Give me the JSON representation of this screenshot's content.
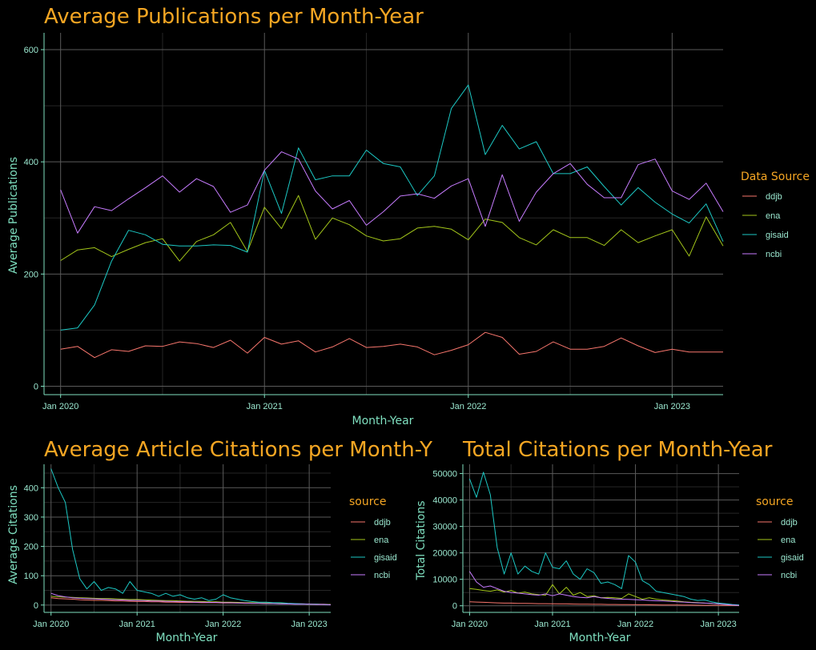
{
  "colors": {
    "background": "#000000",
    "title": "#f5a623",
    "axis_text": "#7fe0c0",
    "grid_major": "#5a5a5a",
    "grid_minor": "#262626",
    "ddjb": "#f8766d",
    "ena": "#a3c61a",
    "gisaid": "#1cc8c4",
    "ncbi": "#c77cff"
  },
  "chart_data": [
    {
      "type": "line",
      "title": "Average Publications per Month-Year",
      "xlabel": "Month-Year",
      "ylabel": "Average Publications",
      "legend_title": "Data Source",
      "legend_placement": "right",
      "grid": true,
      "x_ticks": [
        "Jan 2020",
        "Jan 2021",
        "Jan 2022",
        "Jan 2023"
      ],
      "y_ticks": [
        0,
        200,
        400,
        600
      ],
      "ylim": [
        -15,
        630
      ],
      "x": [
        "2020-01",
        "2020-02",
        "2020-03",
        "2020-04",
        "2020-05",
        "2020-06",
        "2020-07",
        "2020-08",
        "2020-09",
        "2020-10",
        "2020-11",
        "2020-12",
        "2021-01",
        "2021-02",
        "2021-03",
        "2021-04",
        "2021-05",
        "2021-06",
        "2021-07",
        "2021-08",
        "2021-09",
        "2021-10",
        "2021-11",
        "2021-12",
        "2022-01",
        "2022-02",
        "2022-03",
        "2022-04",
        "2022-05",
        "2022-06",
        "2022-07",
        "2022-08",
        "2022-09",
        "2022-10",
        "2022-11",
        "2022-12",
        "2023-01",
        "2023-02",
        "2023-03",
        "2023-04"
      ],
      "series": [
        {
          "name": "ddjb",
          "values": [
            66,
            71,
            51,
            65,
            62,
            72,
            71,
            79,
            76,
            69,
            82,
            59,
            87,
            75,
            81,
            61,
            70,
            85,
            69,
            71,
            75,
            70,
            56,
            64,
            74,
            96,
            87,
            57,
            62,
            79,
            66,
            66,
            71,
            86,
            72,
            60,
            66,
            61,
            61,
            61
          ]
        },
        {
          "name": "ena",
          "values": [
            224,
            243,
            247,
            231,
            244,
            256,
            263,
            223,
            258,
            270,
            292,
            240,
            319,
            281,
            340,
            262,
            300,
            288,
            268,
            259,
            263,
            282,
            285,
            280,
            261,
            298,
            292,
            265,
            252,
            279,
            265,
            265,
            251,
            279,
            256,
            268,
            279,
            232,
            302,
            250
          ]
        },
        {
          "name": "gisaid",
          "values": [
            100,
            104,
            145,
            223,
            278,
            270,
            253,
            250,
            250,
            252,
            251,
            239,
            385,
            308,
            425,
            368,
            375,
            375,
            421,
            397,
            391,
            340,
            375,
            495,
            537,
            413,
            465,
            423,
            436,
            379,
            379,
            391,
            356,
            323,
            354,
            328,
            307,
            291,
            325,
            258
          ]
        },
        {
          "name": "ncbi",
          "values": [
            350,
            273,
            320,
            313,
            334,
            354,
            375,
            346,
            370,
            356,
            310,
            323,
            385,
            418,
            405,
            348,
            316,
            331,
            287,
            311,
            339,
            343,
            335,
            357,
            370,
            285,
            377,
            294,
            346,
            379,
            397,
            360,
            336,
            336,
            395,
            405,
            348,
            333,
            362,
            311
          ]
        }
      ]
    },
    {
      "type": "line",
      "title": "Average Article Citations per Month-Y",
      "xlabel": "Month-Year",
      "ylabel": "Average Citations",
      "legend_title": "source",
      "legend_placement": "right",
      "grid": true,
      "x_ticks": [
        "Jan 2020",
        "Jan 2021",
        "Jan 2022",
        "Jan 2023"
      ],
      "y_ticks": [
        0,
        100,
        200,
        300,
        400
      ],
      "ylim": [
        -25,
        480
      ],
      "x": [
        "2020-01",
        "2020-02",
        "2020-03",
        "2020-04",
        "2020-05",
        "2020-06",
        "2020-07",
        "2020-08",
        "2020-09",
        "2020-10",
        "2020-11",
        "2020-12",
        "2021-01",
        "2021-02",
        "2021-03",
        "2021-04",
        "2021-05",
        "2021-06",
        "2021-07",
        "2021-08",
        "2021-09",
        "2021-10",
        "2021-11",
        "2021-12",
        "2022-01",
        "2022-02",
        "2022-03",
        "2022-04",
        "2022-05",
        "2022-06",
        "2022-07",
        "2022-08",
        "2022-09",
        "2022-10",
        "2022-11",
        "2022-12",
        "2023-01",
        "2023-02",
        "2023-03",
        "2023-04"
      ],
      "series": [
        {
          "name": "ddjb",
          "values": [
            25,
            22,
            21,
            20,
            18,
            17,
            16,
            16,
            15,
            14,
            14,
            13,
            12,
            12,
            11,
            11,
            10,
            10,
            9,
            9,
            9,
            8,
            8,
            8,
            7,
            7,
            7,
            6,
            6,
            6,
            5,
            5,
            5,
            4,
            4,
            4,
            3,
            3,
            3,
            2
          ]
        },
        {
          "name": "ena",
          "values": [
            30,
            28,
            27,
            26,
            25,
            24,
            23,
            22,
            22,
            21,
            20,
            19,
            19,
            18,
            17,
            16,
            15,
            15,
            14,
            13,
            13,
            12,
            11,
            11,
            10,
            10,
            9,
            8,
            8,
            7,
            7,
            6,
            5,
            5,
            4,
            4,
            3,
            3,
            2,
            2
          ]
        },
        {
          "name": "gisaid",
          "values": [
            465,
            400,
            350,
            190,
            90,
            55,
            80,
            50,
            60,
            55,
            40,
            80,
            50,
            45,
            40,
            30,
            40,
            30,
            35,
            25,
            20,
            25,
            15,
            20,
            35,
            25,
            20,
            15,
            12,
            10,
            10,
            8,
            8,
            6,
            5,
            4,
            3,
            3,
            2,
            1
          ]
        },
        {
          "name": "ncbi",
          "values": [
            40,
            32,
            28,
            25,
            23,
            22,
            21,
            20,
            19,
            18,
            17,
            16,
            16,
            15,
            14,
            14,
            13,
            12,
            12,
            11,
            10,
            10,
            9,
            9,
            8,
            8,
            7,
            7,
            6,
            6,
            5,
            5,
            4,
            4,
            3,
            3,
            3,
            2,
            2,
            1
          ]
        }
      ]
    },
    {
      "type": "line",
      "title": "Total Citations per Month-Year",
      "xlabel": "Month-Year",
      "ylabel": "Total Citations",
      "legend_title": "source",
      "legend_placement": "right",
      "grid": true,
      "x_ticks": [
        "Jan 2020",
        "Jan 2021",
        "Jan 2022",
        "Jan 2023"
      ],
      "y_ticks": [
        0,
        10000,
        20000,
        30000,
        40000,
        50000
      ],
      "ylim": [
        -2500,
        53500
      ],
      "x": [
        "2020-01",
        "2020-02",
        "2020-03",
        "2020-04",
        "2020-05",
        "2020-06",
        "2020-07",
        "2020-08",
        "2020-09",
        "2020-10",
        "2020-11",
        "2020-12",
        "2021-01",
        "2021-02",
        "2021-03",
        "2021-04",
        "2021-05",
        "2021-06",
        "2021-07",
        "2021-08",
        "2021-09",
        "2021-10",
        "2021-11",
        "2021-12",
        "2022-01",
        "2022-02",
        "2022-03",
        "2022-04",
        "2022-05",
        "2022-06",
        "2022-07",
        "2022-08",
        "2022-09",
        "2022-10",
        "2022-11",
        "2022-12",
        "2023-01",
        "2023-02",
        "2023-03",
        "2023-04"
      ],
      "series": [
        {
          "name": "ddjb",
          "values": [
            1500,
            1400,
            1300,
            1200,
            1100,
            1000,
            1000,
            900,
            900,
            850,
            800,
            800,
            750,
            700,
            700,
            650,
            600,
            600,
            550,
            550,
            500,
            500,
            450,
            450,
            400,
            400,
            380,
            350,
            330,
            300,
            280,
            260,
            240,
            220,
            200,
            180,
            150,
            120,
            100,
            80
          ]
        },
        {
          "name": "ena",
          "values": [
            6500,
            6200,
            5800,
            5500,
            6000,
            5200,
            5800,
            4800,
            5200,
            4500,
            4200,
            4000,
            8000,
            4500,
            7000,
            4000,
            5000,
            3500,
            3800,
            3000,
            3200,
            3000,
            2800,
            4500,
            3500,
            2500,
            3000,
            2500,
            2200,
            2000,
            1800,
            1500,
            1300,
            1200,
            1000,
            900,
            700,
            500,
            300,
            150
          ]
        },
        {
          "name": "gisaid",
          "values": [
            48000,
            41000,
            50500,
            42000,
            22000,
            12000,
            20000,
            12000,
            15000,
            13000,
            12000,
            20000,
            14500,
            14000,
            17000,
            12000,
            10000,
            14000,
            12500,
            8500,
            9000,
            8000,
            6500,
            19000,
            16500,
            9500,
            8000,
            5500,
            5000,
            4500,
            4000,
            3500,
            2500,
            2000,
            2200,
            1500,
            1000,
            800,
            500,
            300
          ]
        },
        {
          "name": "ncbi",
          "values": [
            13000,
            9000,
            7000,
            7500,
            6500,
            5500,
            5000,
            4800,
            4500,
            4200,
            4000,
            4500,
            3800,
            4500,
            4000,
            3500,
            3200,
            3000,
            3500,
            3000,
            2800,
            2600,
            2500,
            2400,
            2300,
            2200,
            2000,
            1900,
            1800,
            1700,
            1500,
            1400,
            1200,
            1100,
            1000,
            900,
            700,
            500,
            300,
            150
          ]
        }
      ]
    }
  ]
}
